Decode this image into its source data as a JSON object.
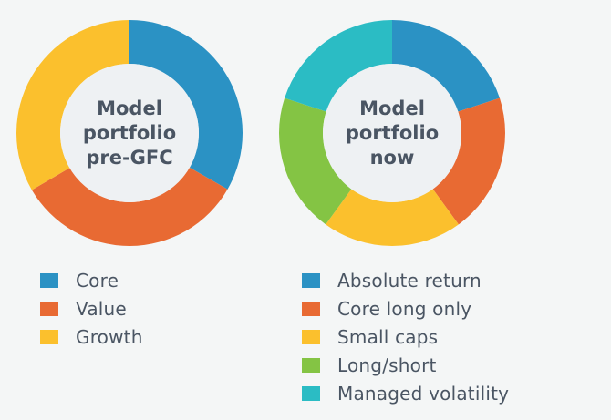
{
  "colors": {
    "blue": "#2b92c4",
    "orange": "#e86a33",
    "yellow": "#fbc02d",
    "green": "#84c444",
    "teal": "#2bbcc4",
    "hole": "#eef1f3",
    "background": "#f4f6f6",
    "text": "#4a5563"
  },
  "chart_data": [
    {
      "type": "pie",
      "donut": true,
      "title": "",
      "center_label": [
        "Model",
        "portfolio",
        "pre-GFC"
      ],
      "categories": [
        "Core",
        "Value",
        "Growth"
      ],
      "values": [
        33.3,
        33.3,
        33.4
      ],
      "colors": [
        "#2b92c4",
        "#e86a33",
        "#fbc02d"
      ],
      "legend_position": "bottom"
    },
    {
      "type": "pie",
      "donut": true,
      "title": "",
      "center_label": [
        "Model",
        "portfolio",
        "now"
      ],
      "categories": [
        "Absolute return",
        "Core long only",
        "Small caps",
        "Long/short",
        "Managed volatility"
      ],
      "values": [
        20,
        20,
        20,
        20,
        20
      ],
      "colors": [
        "#2b92c4",
        "#e86a33",
        "#fbc02d",
        "#84c444",
        "#2bbcc4"
      ],
      "legend_position": "bottom"
    }
  ]
}
